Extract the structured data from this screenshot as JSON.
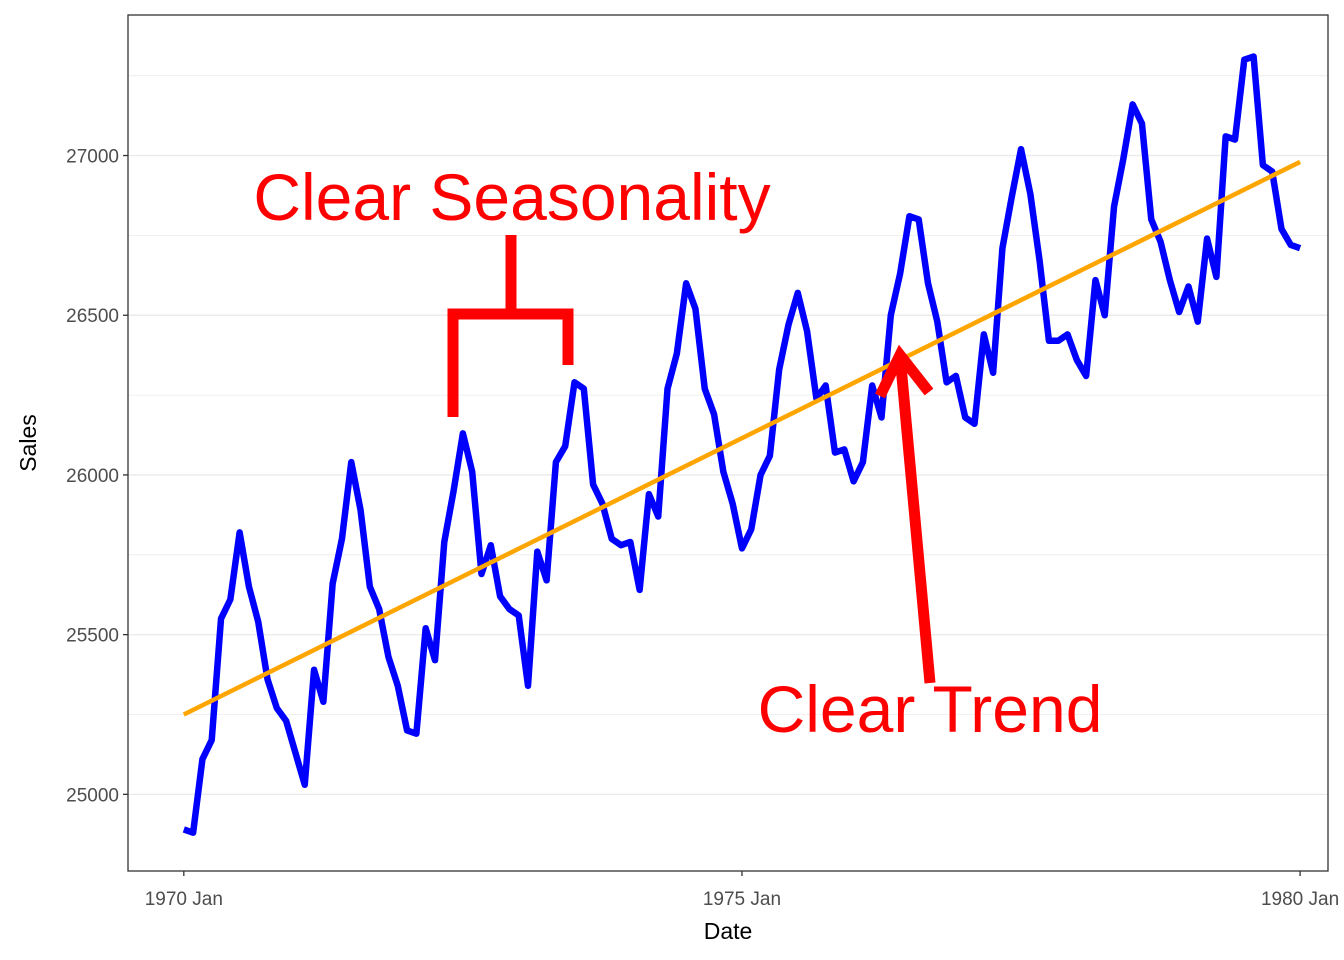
{
  "chart_data": {
    "type": "line",
    "xlabel": "Date",
    "ylabel": "Sales",
    "x_start": "1970-01",
    "x_end": "1980-01",
    "xlim": [
      "1969-07",
      "1980-04"
    ],
    "ylim": [
      24760,
      27440
    ],
    "x_ticks": [
      {
        "label": "1970 Jan",
        "value": "1970-01"
      },
      {
        "label": "1975 Jan",
        "value": "1975-01"
      },
      {
        "label": "1980 Jan",
        "value": "1980-01"
      }
    ],
    "y_ticks": [
      25000,
      25500,
      26000,
      26500,
      27000
    ],
    "grid": true,
    "colors": {
      "series": "#0000ff",
      "trend": "#ffa500",
      "annotation": "#ff0000"
    },
    "series": [
      {
        "values": [
          24890,
          24880,
          25110,
          25170,
          25550,
          25610,
          25820,
          25650,
          25540,
          25360,
          25270,
          25230,
          25130,
          25030,
          25390,
          25290,
          25660,
          25800,
          26040,
          25890,
          25650,
          25580,
          25430,
          25340,
          25200,
          25190,
          25520,
          25420,
          25790,
          25950,
          26130,
          26010,
          25690,
          25780,
          25620,
          25580,
          25560,
          25340,
          25760,
          25670,
          26040,
          26090,
          26290,
          26270,
          25970,
          25910,
          25800,
          25780,
          25790,
          25640,
          25940,
          25870,
          26270,
          26380,
          26600,
          26520,
          26270,
          26190,
          26010,
          25910,
          25770,
          25830,
          26000,
          26060,
          26330,
          26470,
          26570,
          26450,
          26240,
          26280,
          26070,
          26080,
          25980,
          26040,
          26280,
          26180,
          26500,
          26630,
          26810,
          26800,
          26600,
          26480,
          26290,
          26310,
          26180,
          26160,
          26440,
          26320,
          26710,
          26870,
          27020,
          26880,
          26670,
          26420,
          26420,
          26440,
          26360,
          26310,
          26610,
          26500,
          26840,
          26990,
          27160,
          27100,
          26800,
          26730,
          26610,
          26510,
          26590,
          26480,
          26740,
          26620,
          27060,
          27050,
          27300,
          27310,
          26970,
          26950,
          26770,
          26720,
          26710
        ]
      },
      {
        "values": [
          25250,
          26980
        ]
      }
    ],
    "annotations": [
      {
        "text": "Clear Seasonality"
      },
      {
        "text": "Clear Trend"
      }
    ]
  }
}
